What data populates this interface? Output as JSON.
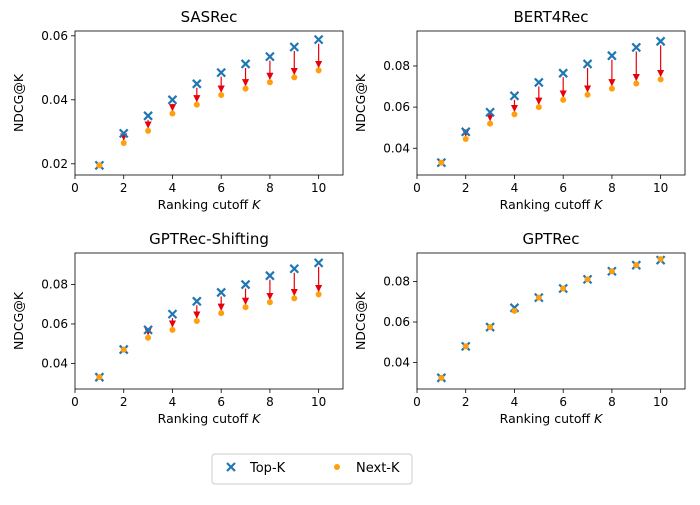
{
  "legend": {
    "top_k_label": "Top-K",
    "next_k_label": "Next-K",
    "placement": "bottom-center"
  },
  "colors": {
    "top_k": "#1f77b4",
    "next_k": "#ff9f0f",
    "arrow": "#e8000b",
    "axis": "#000000"
  },
  "chart_data": [
    {
      "type": "scatter",
      "title": "SASRec",
      "xlabel": "Ranking cutoff K",
      "ylabel": "NDCG@K",
      "xlim": [
        0,
        11
      ],
      "ylim": [
        0.0165,
        0.0615
      ],
      "xticks": [
        0,
        2,
        4,
        6,
        8,
        10
      ],
      "yticks": [
        0.02,
        0.04,
        0.06
      ],
      "ytick_labels": [
        "0.02",
        "0.04",
        "0.06"
      ],
      "x": [
        1,
        2,
        3,
        4,
        5,
        6,
        7,
        8,
        9,
        10
      ],
      "series": [
        {
          "name": "Top-K",
          "values": [
            0.0195,
            0.0295,
            0.035,
            0.04,
            0.045,
            0.0485,
            0.0512,
            0.0535,
            0.0565,
            0.0588
          ]
        },
        {
          "name": "Next-K",
          "values": [
            0.0195,
            0.0265,
            0.0303,
            0.0357,
            0.0385,
            0.0415,
            0.0435,
            0.0455,
            0.047,
            0.0492
          ]
        }
      ]
    },
    {
      "type": "scatter",
      "title": "BERT4Rec",
      "xlabel": "Ranking cutoff K",
      "ylabel": "NDCG@K",
      "xlim": [
        0,
        11
      ],
      "ylim": [
        0.027,
        0.097
      ],
      "xticks": [
        0,
        2,
        4,
        6,
        8,
        10
      ],
      "yticks": [
        0.04,
        0.06,
        0.08
      ],
      "ytick_labels": [
        "0.04",
        "0.06",
        "0.08"
      ],
      "x": [
        1,
        2,
        3,
        4,
        5,
        6,
        7,
        8,
        9,
        10
      ],
      "series": [
        {
          "name": "Top-K",
          "values": [
            0.033,
            0.048,
            0.0575,
            0.0655,
            0.072,
            0.0765,
            0.081,
            0.085,
            0.089,
            0.092
          ]
        },
        {
          "name": "Next-K",
          "values": [
            0.033,
            0.0445,
            0.052,
            0.0565,
            0.06,
            0.0635,
            0.066,
            0.069,
            0.0715,
            0.0735
          ]
        }
      ]
    },
    {
      "type": "scatter",
      "title": "GPTRec-Shifting",
      "xlabel": "Ranking cutoff K",
      "ylabel": "NDCG@K",
      "xlim": [
        0,
        11
      ],
      "ylim": [
        0.027,
        0.096
      ],
      "xticks": [
        0,
        2,
        4,
        6,
        8,
        10
      ],
      "yticks": [
        0.04,
        0.06,
        0.08
      ],
      "ytick_labels": [
        "0.04",
        "0.06",
        "0.08"
      ],
      "x": [
        1,
        2,
        3,
        4,
        5,
        6,
        7,
        8,
        9,
        10
      ],
      "series": [
        {
          "name": "Top-K",
          "values": [
            0.033,
            0.047,
            0.057,
            0.065,
            0.0715,
            0.076,
            0.08,
            0.0845,
            0.088,
            0.091
          ]
        },
        {
          "name": "Next-K",
          "values": [
            0.033,
            0.047,
            0.053,
            0.057,
            0.0615,
            0.0655,
            0.0685,
            0.071,
            0.073,
            0.075
          ]
        }
      ]
    },
    {
      "type": "scatter",
      "title": "GPTRec",
      "xlabel": "Ranking cutoff K",
      "ylabel": "NDCG@K",
      "xlim": [
        0,
        11
      ],
      "ylim": [
        0.027,
        0.094
      ],
      "xticks": [
        0,
        2,
        4,
        6,
        8,
        10
      ],
      "yticks": [
        0.04,
        0.06,
        0.08
      ],
      "ytick_labels": [
        "0.04",
        "0.06",
        "0.08"
      ],
      "x": [
        1,
        2,
        3,
        4,
        5,
        6,
        7,
        8,
        9,
        10
      ],
      "series": [
        {
          "name": "Top-K",
          "values": [
            0.0325,
            0.048,
            0.0575,
            0.067,
            0.072,
            0.0765,
            0.081,
            0.085,
            0.088,
            0.0905
          ]
        },
        {
          "name": "Next-K",
          "values": [
            0.0325,
            0.048,
            0.0575,
            0.0655,
            0.072,
            0.0765,
            0.081,
            0.085,
            0.088,
            0.091
          ]
        }
      ]
    }
  ]
}
